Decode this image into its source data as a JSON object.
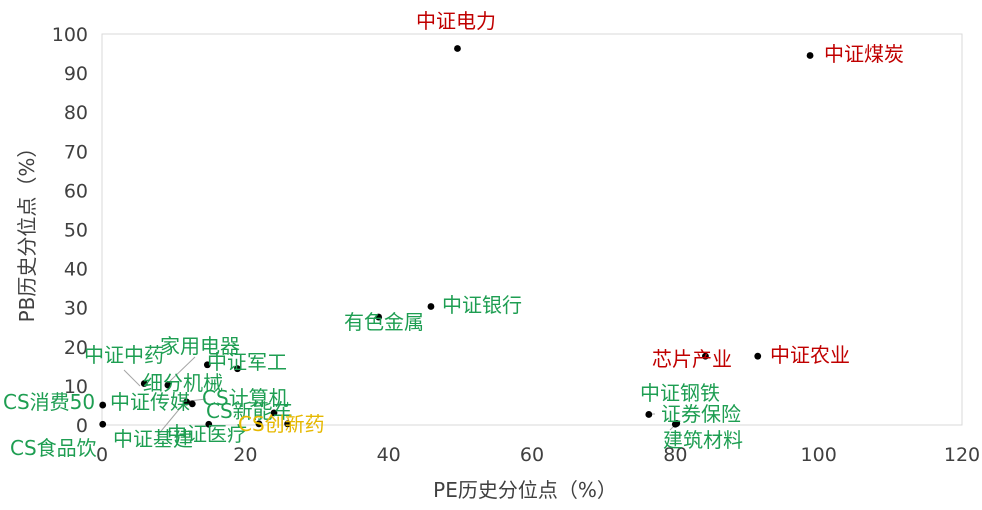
{
  "chart_data": {
    "type": "scatter",
    "title": "",
    "xlabel": "PE历史分位点（%）",
    "ylabel": "PB历史分位点（%）",
    "xlim": [
      0,
      120
    ],
    "ylim": [
      0,
      100
    ],
    "x_ticks": [
      "0",
      "20",
      "40",
      "60",
      "80",
      "100",
      "120"
    ],
    "y_ticks": [
      "0",
      "10",
      "20",
      "30",
      "40",
      "50",
      "60",
      "70",
      "80",
      "90",
      "100"
    ],
    "grid": false,
    "colors": {
      "red": "#c00000",
      "green": "#1e9e52",
      "yellow": "#e6b800",
      "point": "#000000",
      "axis": "#d9d9d9",
      "text": "#404040"
    },
    "points": [
      {
        "label": "中证电力",
        "x": 49.6,
        "y": 96.3,
        "color": "red"
      },
      {
        "label": "中证煤炭",
        "x": 98.8,
        "y": 94.5,
        "color": "red"
      },
      {
        "label": "中证银行",
        "x": 45.9,
        "y": 30.3,
        "color": "green"
      },
      {
        "label": "有色金属",
        "x": 38.6,
        "y": 27.6,
        "color": "green"
      },
      {
        "label": "芯片产业",
        "x": 84.2,
        "y": 17.6,
        "color": "red"
      },
      {
        "label": "中证农业",
        "x": 91.5,
        "y": 17.6,
        "color": "red"
      },
      {
        "label": "中证钢铁",
        "x": 76.3,
        "y": 2.7,
        "color": "green"
      },
      {
        "label": "证券保险",
        "x": 80.2,
        "y": 0.4,
        "color": "green"
      },
      {
        "label": "建筑材料",
        "x": 80.0,
        "y": 0.2,
        "color": "green"
      },
      {
        "label": "家用电器",
        "x": 14.7,
        "y": 15.4,
        "color": "green"
      },
      {
        "label": "中证军工",
        "x": 18.9,
        "y": 14.4,
        "color": "green"
      },
      {
        "label": "中证中药",
        "x": 5.9,
        "y": 10.6,
        "color": "green"
      },
      {
        "label": "细分机械",
        "x": 9.2,
        "y": 10.2,
        "color": "green"
      },
      {
        "label": "中证传媒",
        "x": 11.8,
        "y": 5.9,
        "color": "green"
      },
      {
        "label": "CS计算机",
        "x": 12.6,
        "y": 5.4,
        "color": "green"
      },
      {
        "label": "CS新能车",
        "x": 24.0,
        "y": 3.1,
        "color": "green"
      },
      {
        "label": "CS消费50",
        "x": 0.1,
        "y": 5.1,
        "color": "green"
      },
      {
        "label": "CS食品饮",
        "x": 0.1,
        "y": 0.2,
        "color": "green"
      },
      {
        "label": "中证基建",
        "x": 14.9,
        "y": 0.2,
        "color": "green"
      },
      {
        "label": "中证医疗",
        "x": 21.9,
        "y": 0.3,
        "color": "green"
      },
      {
        "label": "CS创新药",
        "x": 25.9,
        "y": 0.3,
        "color": "yellow"
      }
    ]
  }
}
